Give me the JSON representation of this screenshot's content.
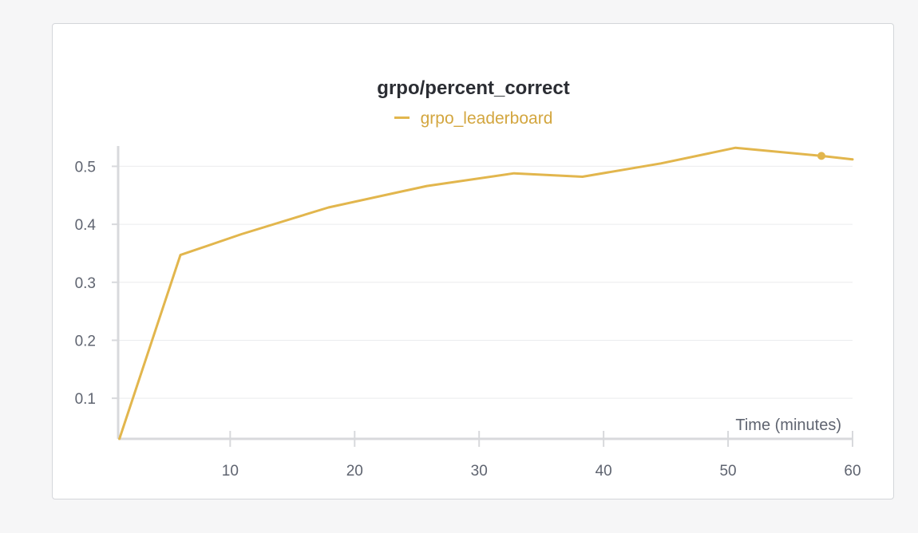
{
  "colors": {
    "series": "#e2b64d",
    "legend_text": "#d3a63f",
    "grid": "#ebecee",
    "axis": "#d8d9dc",
    "tick_text": "#5f6470"
  },
  "chart_data": {
    "type": "line",
    "title": "grpo/percent_correct",
    "xlabel": "Time (minutes)",
    "ylabel": "",
    "xlim": [
      1,
      60
    ],
    "ylim": [
      0.03,
      0.535
    ],
    "xticks": [
      10,
      20,
      30,
      40,
      50,
      60
    ],
    "yticks": [
      0.1,
      0.2,
      0.3,
      0.4,
      0.5
    ],
    "xtick_labels": [
      "10",
      "20",
      "30",
      "40",
      "50",
      "60"
    ],
    "ytick_labels": [
      "0.1",
      "0.2",
      "0.3",
      "0.4",
      "0.5"
    ],
    "grid": true,
    "legend": "top-center",
    "series": [
      {
        "name": "grpo_leaderboard",
        "x": [
          1.1,
          6.0,
          10.9,
          17.9,
          25.8,
          32.8,
          38.3,
          44.6,
          50.6,
          57.5,
          60.0
        ],
        "y": [
          0.03,
          0.347,
          0.383,
          0.429,
          0.466,
          0.488,
          0.482,
          0.505,
          0.532,
          0.518,
          0.512
        ],
        "highlight_point": {
          "x": 57.5,
          "y": 0.518
        }
      }
    ]
  }
}
